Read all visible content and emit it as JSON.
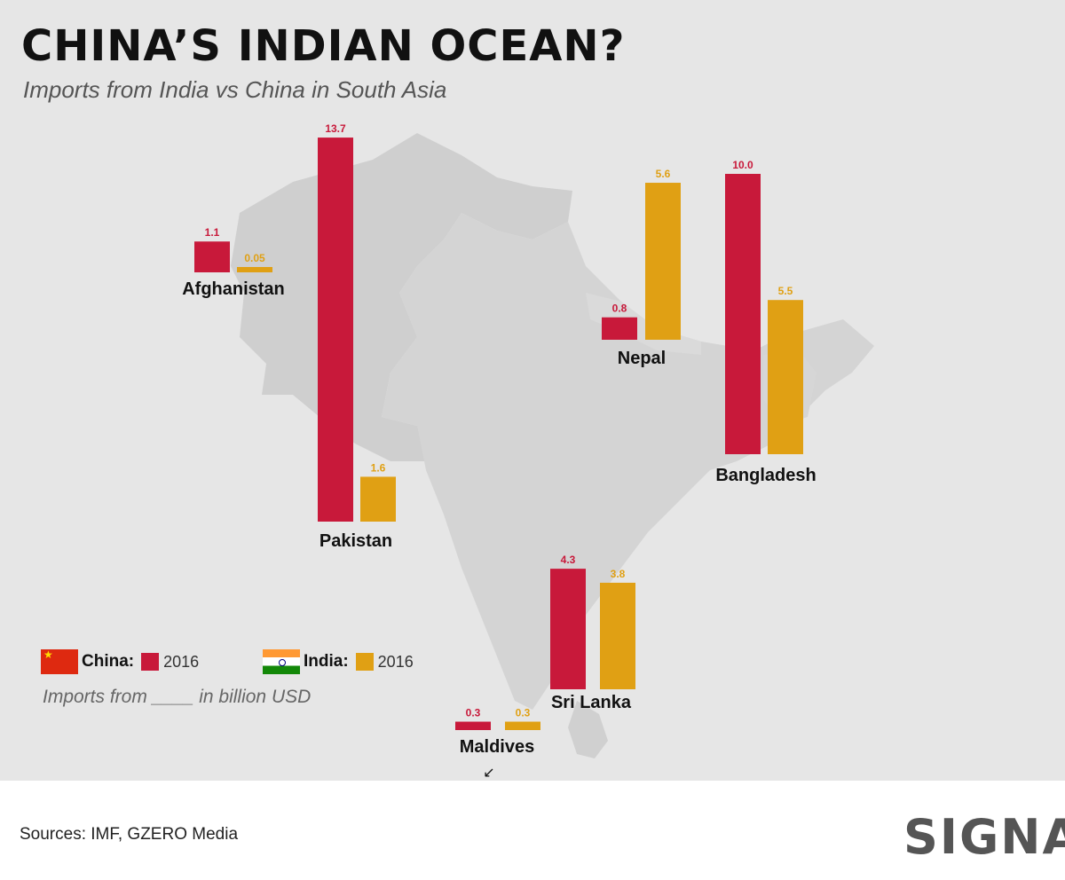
{
  "header": {
    "title": "CHINA’S INDIAN OCEAN?",
    "subtitle": "Imports from India vs China in South Asia"
  },
  "legend": {
    "china_label": "China:",
    "china_year": "2016",
    "india_label": "India:",
    "india_year": "2016",
    "note": "Imports from ____ in billion USD"
  },
  "footer": {
    "sources": "Sources: IMF, GZERO Media",
    "logo": "SIGNAL"
  },
  "colors": {
    "china": "#c8193a",
    "india": "#e0a014",
    "map": "#cfcfcf",
    "background": "#e6e6e6"
  },
  "chart_data": {
    "type": "bar",
    "categories": [
      "Afghanistan",
      "Pakistan",
      "Nepal",
      "Bangladesh",
      "Sri Lanka",
      "Maldives"
    ],
    "series": [
      {
        "name": "China",
        "year": "2016",
        "values": [
          1.1,
          13.7,
          0.8,
          10.0,
          4.3,
          0.3
        ]
      },
      {
        "name": "India",
        "year": "2016",
        "values": [
          0.05,
          1.6,
          5.6,
          5.5,
          3.8,
          0.3
        ]
      }
    ],
    "value_labels": {
      "China": [
        "1.1",
        "13.7",
        "0.8",
        "10.0",
        "4.3",
        "0.3"
      ],
      "India": [
        "0.05",
        "1.6",
        "5.6",
        "5.5",
        "3.8",
        "0.3"
      ]
    },
    "unit": "billion USD",
    "background": "map of South Asia"
  }
}
